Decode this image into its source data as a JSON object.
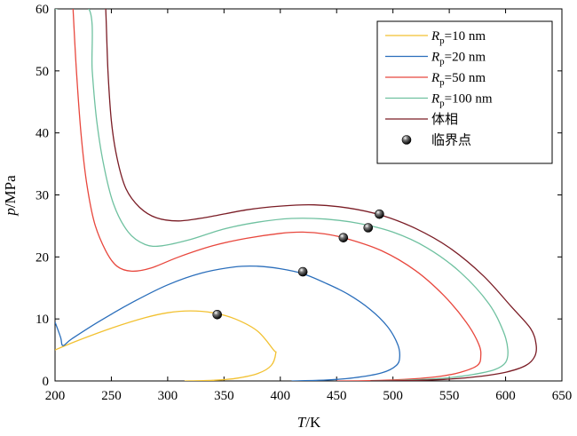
{
  "chart_data": {
    "type": "line",
    "title": "",
    "xlabel": {
      "var": "T",
      "unit": "/K"
    },
    "ylabel": {
      "var": "p",
      "unit": "/MPa"
    },
    "xlim": [
      200,
      650
    ],
    "ylim": [
      0,
      60
    ],
    "xticks": [
      200,
      250,
      300,
      350,
      400,
      450,
      500,
      550,
      600,
      650
    ],
    "yticks": [
      0,
      10,
      20,
      30,
      40,
      50,
      60
    ],
    "grid": false,
    "legend_position": "top-right",
    "series": [
      {
        "name": "Rp=10 nm",
        "label": {
          "var": "R",
          "sub": "p",
          "rest": "=10 nm"
        },
        "color": "#f2c131",
        "points": [
          [
            200,
            5
          ],
          [
            220,
            6.5
          ],
          [
            250,
            8.5
          ],
          [
            280,
            10.2
          ],
          [
            300,
            11
          ],
          [
            320,
            11.3
          ],
          [
            340,
            11
          ],
          [
            360,
            10
          ],
          [
            380,
            8
          ],
          [
            394,
            5
          ],
          [
            396,
            4.5
          ],
          [
            392,
            2.5
          ],
          [
            380,
            1.2
          ],
          [
            360,
            0.4
          ],
          [
            340,
            0.1
          ],
          [
            315,
            0
          ]
        ]
      },
      {
        "name": "Rp=20 nm",
        "label": {
          "var": "R",
          "sub": "p",
          "rest": "=20 nm"
        },
        "color": "#2a6ebb",
        "points": [
          [
            200,
            9.5
          ],
          [
            205,
            7
          ],
          [
            207,
            5.7
          ],
          [
            215,
            6.8
          ],
          [
            240,
            9.7
          ],
          [
            270,
            12.8
          ],
          [
            300,
            15.5
          ],
          [
            330,
            17.4
          ],
          [
            360,
            18.4
          ],
          [
            380,
            18.5
          ],
          [
            400,
            18.1
          ],
          [
            420,
            17.3
          ],
          [
            440,
            15.8
          ],
          [
            460,
            14
          ],
          [
            480,
            11.5
          ],
          [
            495,
            8.8
          ],
          [
            504,
            6
          ],
          [
            506,
            4
          ],
          [
            503,
            2.5
          ],
          [
            490,
            1.3
          ],
          [
            465,
            0.5
          ],
          [
            440,
            0.15
          ],
          [
            410,
            0
          ]
        ]
      },
      {
        "name": "Rp=50 nm",
        "label": {
          "var": "R",
          "sub": "p",
          "rest": "=50 nm"
        },
        "color": "#e8473d",
        "points": [
          [
            216,
            60
          ],
          [
            219,
            50
          ],
          [
            223,
            40
          ],
          [
            228,
            32
          ],
          [
            235,
            25.5
          ],
          [
            245,
            21
          ],
          [
            255,
            18.5
          ],
          [
            268,
            17.7
          ],
          [
            285,
            18.2
          ],
          [
            310,
            20
          ],
          [
            340,
            21.8
          ],
          [
            370,
            23
          ],
          [
            400,
            23.8
          ],
          [
            420,
            24
          ],
          [
            440,
            23.7
          ],
          [
            460,
            22.9
          ],
          [
            490,
            21
          ],
          [
            520,
            17.8
          ],
          [
            545,
            13.8
          ],
          [
            565,
            9.5
          ],
          [
            576,
            6
          ],
          [
            578,
            4
          ],
          [
            575,
            2.5
          ],
          [
            560,
            1.4
          ],
          [
            540,
            0.7
          ],
          [
            510,
            0.25
          ],
          [
            480,
            0.05
          ],
          [
            450,
            0
          ]
        ]
      },
      {
        "name": "Rp=100 nm",
        "label": {
          "var": "R",
          "sub": "p",
          "rest": "=100 nm"
        },
        "color": "#6fc1a0",
        "points": [
          [
            200,
            60
          ],
          [
            230,
            60
          ],
          [
            233,
            50
          ],
          [
            237,
            42
          ],
          [
            243,
            35
          ],
          [
            252,
            28.5
          ],
          [
            265,
            24
          ],
          [
            280,
            22
          ],
          [
            295,
            21.8
          ],
          [
            320,
            22.8
          ],
          [
            350,
            24.5
          ],
          [
            380,
            25.6
          ],
          [
            410,
            26.2
          ],
          [
            440,
            26.1
          ],
          [
            470,
            25.4
          ],
          [
            500,
            24
          ],
          [
            530,
            21.5
          ],
          [
            560,
            17.5
          ],
          [
            585,
            12.5
          ],
          [
            598,
            8
          ],
          [
            602,
            5
          ],
          [
            600,
            3
          ],
          [
            590,
            1.8
          ],
          [
            570,
            1
          ],
          [
            545,
            0.45
          ],
          [
            510,
            0.12
          ],
          [
            480,
            0
          ]
        ]
      },
      {
        "name": "体相",
        "label": {
          "var": "体相",
          "sub": "",
          "rest": ""
        },
        "color": "#7a1c25",
        "points": [
          [
            244,
            60
          ],
          [
            245,
            60
          ],
          [
            247,
            50
          ],
          [
            250,
            42
          ],
          [
            255,
            36
          ],
          [
            263,
            31
          ],
          [
            275,
            28
          ],
          [
            290,
            26.3
          ],
          [
            310,
            25.8
          ],
          [
            335,
            26.4
          ],
          [
            370,
            27.6
          ],
          [
            400,
            28.2
          ],
          [
            430,
            28.4
          ],
          [
            460,
            27.9
          ],
          [
            490,
            26.7
          ],
          [
            520,
            24.6
          ],
          [
            550,
            21.5
          ],
          [
            580,
            17
          ],
          [
            605,
            12
          ],
          [
            622,
            8.5
          ],
          [
            627,
            6
          ],
          [
            626,
            4
          ],
          [
            618,
            2.5
          ],
          [
            600,
            1.4
          ],
          [
            575,
            0.7
          ],
          [
            545,
            0.25
          ],
          [
            510,
            0.05
          ],
          [
            480,
            0
          ]
        ]
      }
    ],
    "critical_points": {
      "name": "临界点",
      "color": "#111111",
      "points": [
        [
          344,
          10.7
        ],
        [
          420,
          17.6
        ],
        [
          456,
          23.1
        ],
        [
          478,
          24.7
        ],
        [
          488,
          26.9
        ]
      ]
    }
  }
}
